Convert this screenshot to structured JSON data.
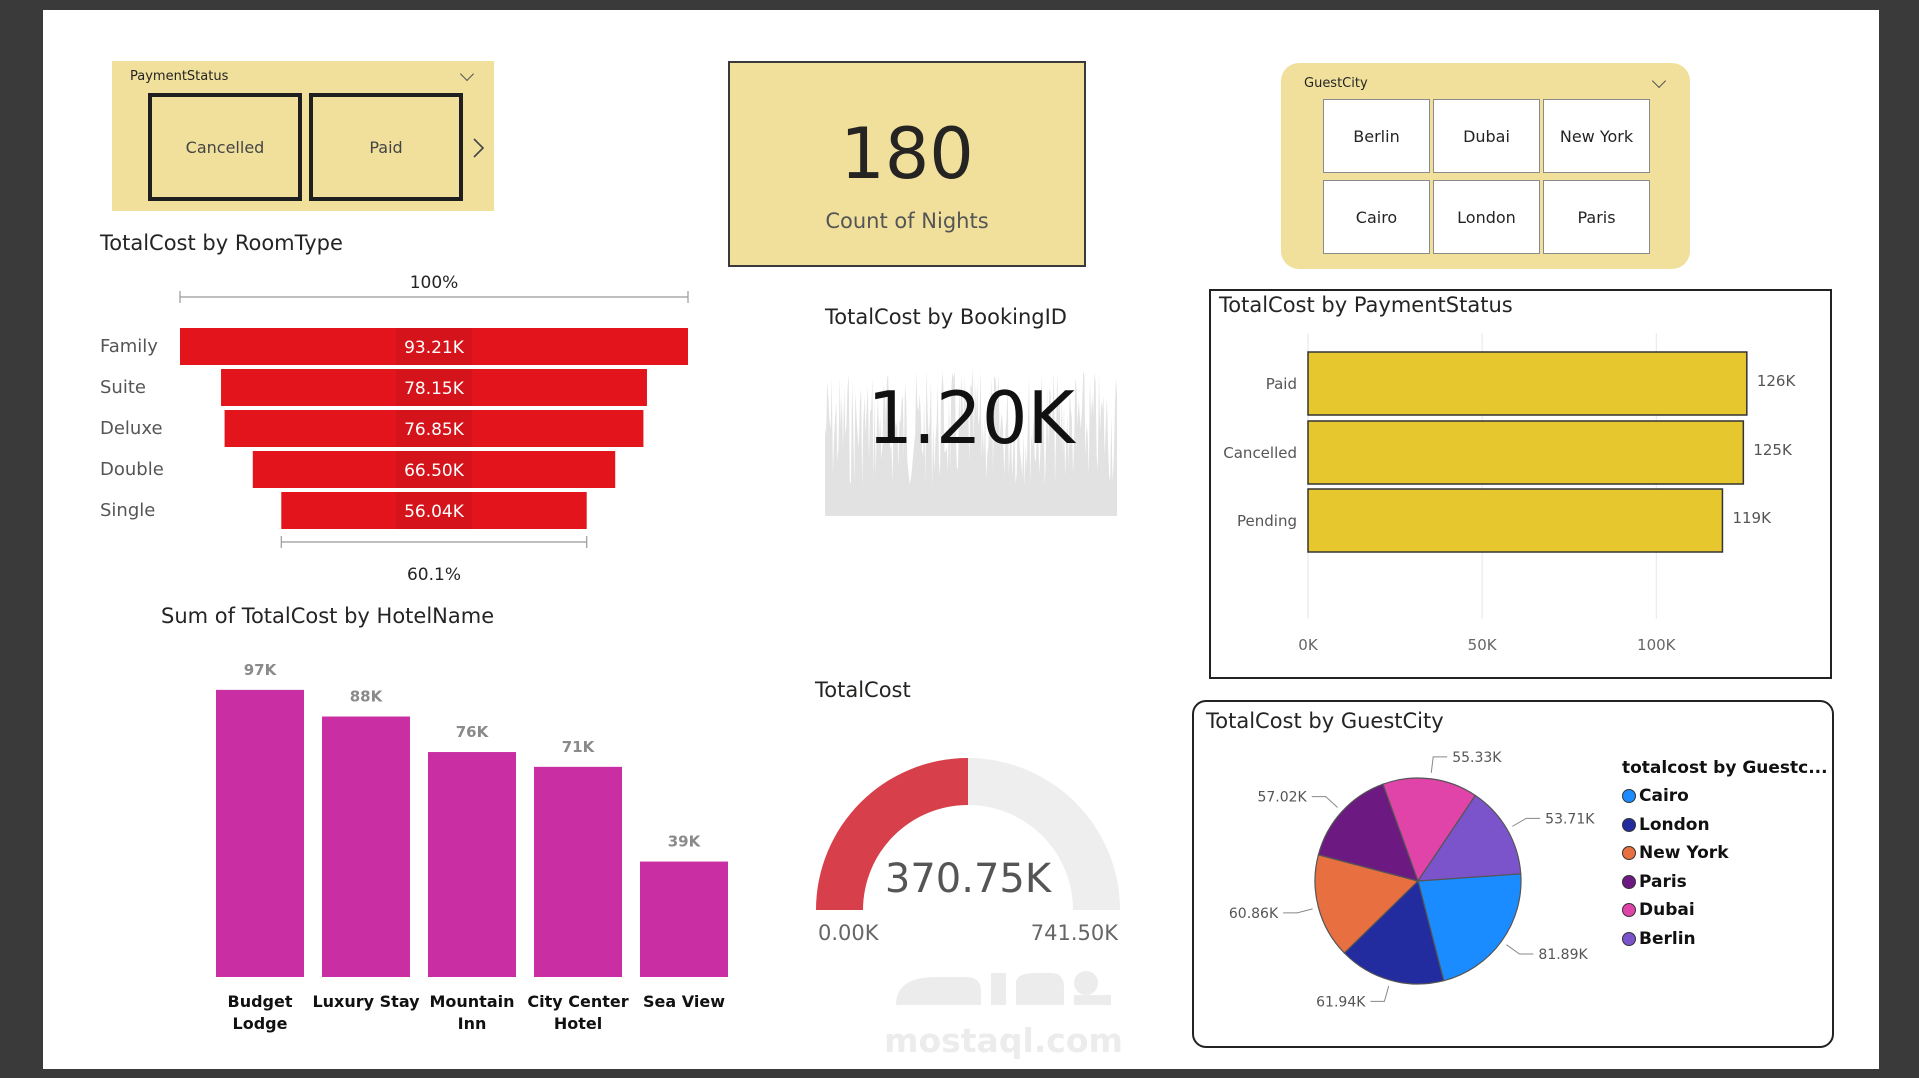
{
  "payment_slicer": {
    "title": "PaymentStatus",
    "options": [
      "Cancelled",
      "Paid"
    ]
  },
  "kpi_nights": {
    "value": "180",
    "label": "Count of Nights"
  },
  "city_slicer": {
    "title": "GuestCity",
    "options": [
      "Berlin",
      "Dubai",
      "New York",
      "Cairo",
      "London",
      "Paris"
    ]
  },
  "booking_card": {
    "title": "TotalCost by BookingID",
    "value": "1.20K"
  },
  "gauge_title": "TotalCost",
  "watermark": {
    "brand": "mostaql.com"
  },
  "colors": {
    "funnel": "#e3141b",
    "hotel_bars": "#c92fa3",
    "status_bars": "#e6c82e",
    "gauge_fill": "#d7404b",
    "gauge_track": "#eeeeee",
    "slicer_bg": "#f0e09c"
  },
  "chart_data": [
    {
      "id": "funnel",
      "type": "funnel",
      "title": "TotalCost by RoomType",
      "top_label": "100%",
      "bottom_label": "60.1%",
      "categories": [
        "Family",
        "Suite",
        "Deluxe",
        "Double",
        "Single"
      ],
      "values": [
        93.21,
        78.15,
        76.85,
        66.5,
        56.04
      ],
      "labels": [
        "93.21K",
        "78.15K",
        "76.85K",
        "66.50K",
        "56.04K"
      ]
    },
    {
      "id": "hotel",
      "type": "bar",
      "title": "Sum of TotalCost by HotelName",
      "categories": [
        [
          "Budget",
          "Lodge"
        ],
        [
          "Luxury Stay"
        ],
        [
          "Mountain",
          "Inn"
        ],
        [
          "City Center",
          "Hotel"
        ],
        [
          "Sea View"
        ]
      ],
      "values": [
        97,
        88,
        76,
        71,
        39
      ],
      "labels": [
        "97K",
        "88K",
        "76K",
        "71K",
        "39K"
      ],
      "ylim": [
        0,
        100
      ]
    },
    {
      "id": "status",
      "type": "bar",
      "orientation": "horizontal",
      "title": "TotalCost by PaymentStatus",
      "categories": [
        "Paid",
        "Cancelled",
        "Pending"
      ],
      "values": [
        126,
        125,
        119
      ],
      "labels": [
        "126K",
        "125K",
        "119K"
      ],
      "xticks": [
        "0K",
        "50K",
        "100K"
      ],
      "xtick_values": [
        0,
        50,
        100
      ],
      "xlim": [
        0,
        145
      ]
    },
    {
      "id": "gauge",
      "type": "gauge",
      "title": "TotalCost",
      "value": 370.75,
      "min": 0,
      "max": 741.5,
      "value_label": "370.75K",
      "min_label": "0.00K",
      "max_label": "741.50K"
    },
    {
      "id": "pie",
      "type": "pie",
      "title": "TotalCost by GuestCity",
      "legend_title": "totalcost by Guestc...",
      "legend": [
        "Cairo",
        "London",
        "New York",
        "Paris",
        "Dubai",
        "Berlin"
      ],
      "slices": [
        {
          "name": "Cairo",
          "value": 81.89,
          "label": "81.89K",
          "color": "#1a8cff"
        },
        {
          "name": "London",
          "value": 61.94,
          "label": "61.94K",
          "color": "#232c9e"
        },
        {
          "name": "New York",
          "value": 60.86,
          "label": "60.86K",
          "color": "#e87040"
        },
        {
          "name": "Paris",
          "value": 57.02,
          "label": "57.02K",
          "color": "#6c1a82"
        },
        {
          "name": "Dubai",
          "value": 55.33,
          "label": "55.33K",
          "color": "#e044a8"
        },
        {
          "name": "Berlin",
          "value": 53.71,
          "label": "53.71K",
          "color": "#7b54cc"
        }
      ]
    }
  ]
}
